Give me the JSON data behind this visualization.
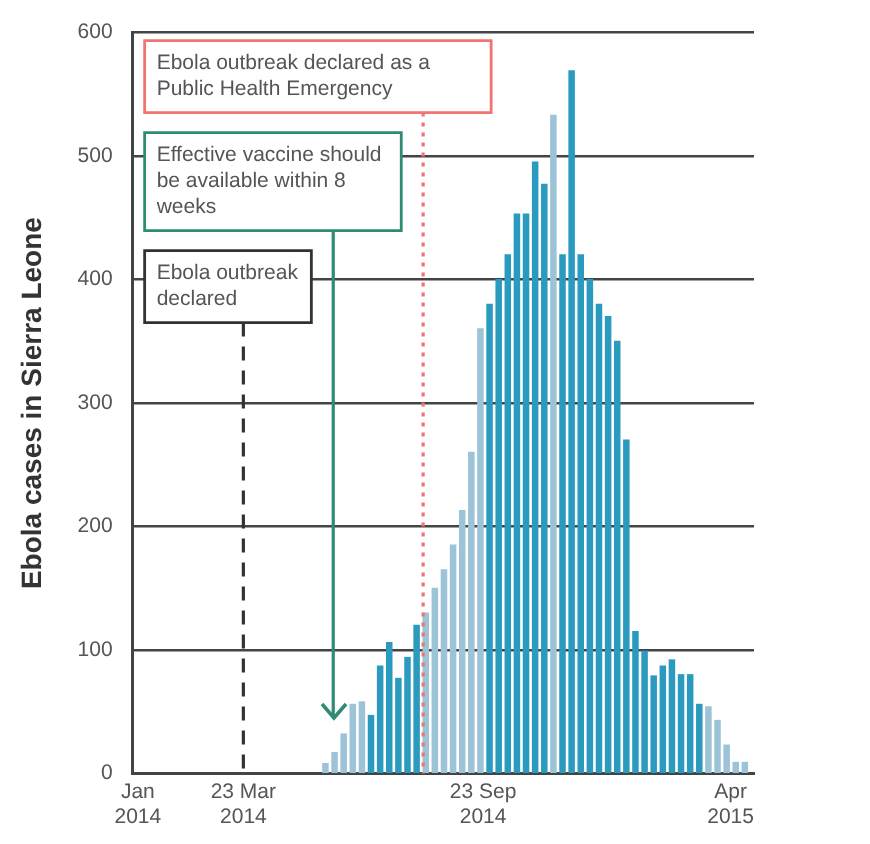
{
  "chart_data": {
    "type": "bar",
    "ylabel": "Ebola cases in Sierra Leone",
    "x": [
      "2014-05-25",
      "2014-06-01",
      "2014-06-08",
      "2014-06-15",
      "2014-06-22",
      "2014-06-29",
      "2014-07-06",
      "2014-07-13",
      "2014-07-20",
      "2014-07-27",
      "2014-08-03",
      "2014-08-10",
      "2014-08-17",
      "2014-08-24",
      "2014-08-31",
      "2014-09-07",
      "2014-09-14",
      "2014-09-21",
      "2014-09-28",
      "2014-10-05",
      "2014-10-12",
      "2014-10-19",
      "2014-10-26",
      "2014-11-02",
      "2014-11-09",
      "2014-11-16",
      "2014-11-23",
      "2014-11-30",
      "2014-12-07",
      "2014-12-14",
      "2014-12-21",
      "2014-12-28",
      "2015-01-04",
      "2015-01-11",
      "2015-01-18",
      "2015-01-25",
      "2015-02-01",
      "2015-02-08",
      "2015-02-15",
      "2015-02-22",
      "2015-03-01",
      "2015-03-08",
      "2015-03-15",
      "2015-03-22",
      "2015-03-29",
      "2015-04-05",
      "2015-04-12"
    ],
    "values": [
      8,
      17,
      32,
      56,
      58,
      47,
      87,
      106,
      77,
      94,
      120,
      130,
      150,
      165,
      185,
      213,
      260,
      360,
      380,
      400,
      420,
      453,
      453,
      495,
      477,
      533,
      420,
      569,
      420,
      400,
      380,
      370,
      350,
      270,
      115,
      99,
      79,
      87,
      92,
      80,
      80,
      56,
      54,
      43,
      23,
      9,
      9
    ],
    "colors": [
      "#9cc3d8",
      "#9cc3d8",
      "#9cc3d8",
      "#9cc3d8",
      "#9cc3d8",
      "#2a9bbf",
      "#2a9bbf",
      "#2a9bbf",
      "#2a9bbf",
      "#2a9bbf",
      "#2a9bbf",
      "#9cc3d8",
      "#9cc3d8",
      "#9cc3d8",
      "#9cc3d8",
      "#9cc3d8",
      "#9cc3d8",
      "#9cc3d8",
      "#2a9bbf",
      "#2a9bbf",
      "#2a9bbf",
      "#2a9bbf",
      "#2a9bbf",
      "#2a9bbf",
      "#2a9bbf",
      "#9cc3d8",
      "#2a9bbf",
      "#2a9bbf",
      "#2a9bbf",
      "#2a9bbf",
      "#2a9bbf",
      "#2a9bbf",
      "#2a9bbf",
      "#2a9bbf",
      "#2a9bbf",
      "#2a9bbf",
      "#2a9bbf",
      "#2a9bbf",
      "#2a9bbf",
      "#2a9bbf",
      "#2a9bbf",
      "#2a9bbf",
      "#9cc3d8",
      "#9cc3d8",
      "#9cc3d8",
      "#9cc3d8",
      "#9cc3d8"
    ],
    "xlim": [
      "2013-12-28",
      "2015-04-19"
    ],
    "xticks": [
      {
        "value": "2014-01-01",
        "label": "Jan 2014"
      },
      {
        "value": "2014-03-23",
        "label": "23 Mar 2014"
      },
      {
        "value": "2014-09-23",
        "label": "23 Sep 2014"
      },
      {
        "value": "2015-04-01",
        "label": "Apr 2015"
      }
    ],
    "ylim": [
      0,
      600
    ],
    "yticks": [
      0,
      100,
      200,
      300,
      400,
      500,
      600
    ],
    "grid": "y",
    "legend": false,
    "ref_lines": [
      {
        "axis": "x",
        "value": "2014-03-23",
        "label": "Ebola outbreak declared",
        "color": "#333333",
        "line_style": "dashed"
      },
      {
        "axis": "x",
        "value": "2014-05-31",
        "label": "Effective vaccine should be available within 8 weeks",
        "color": "#2e8b74",
        "line_style": "solid"
      },
      {
        "axis": "x",
        "value": "2014-08-08",
        "label": "Ebola outbreak declared as a Public Health Emergency",
        "color": "#f07470",
        "line_style": "dotted"
      }
    ]
  }
}
